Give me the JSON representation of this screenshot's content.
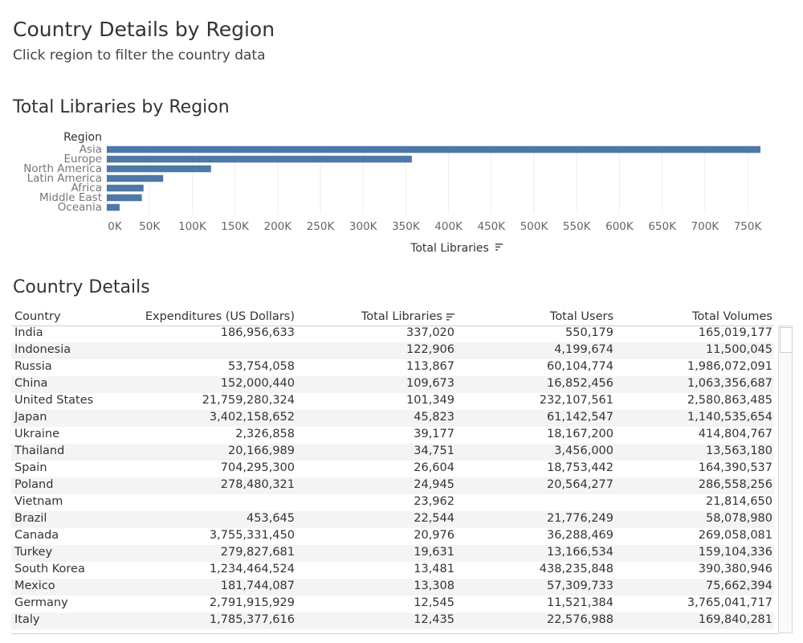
{
  "header": {
    "title": "Country Details by Region",
    "subtitle": "Click region to filter the country data"
  },
  "chart_section": {
    "title": "Total Libraries by Region"
  },
  "table_section": {
    "title": "Country Details"
  },
  "chart_data": {
    "type": "bar",
    "orientation": "horizontal",
    "title": "Total Libraries by Region",
    "dimension_label": "Region",
    "xlabel": "Total Libraries",
    "categories": [
      "Asia",
      "Europe",
      "North America",
      "Latin America",
      "Africa",
      "Middle East",
      "Oceania"
    ],
    "values": [
      765000,
      357000,
      122000,
      66000,
      43000,
      41000,
      15000
    ],
    "xlim": [
      0,
      765000
    ],
    "xticks": [
      0,
      50000,
      100000,
      150000,
      200000,
      250000,
      300000,
      350000,
      400000,
      450000,
      500000,
      550000,
      600000,
      650000,
      700000,
      750000
    ],
    "xtick_labels": [
      "0K",
      "50K",
      "100K",
      "150K",
      "200K",
      "250K",
      "300K",
      "350K",
      "400K",
      "450K",
      "500K",
      "550K",
      "600K",
      "650K",
      "700K",
      "750K"
    ],
    "sorted_by": "Total Libraries",
    "grid": true,
    "bar_color": "#4e79a7"
  },
  "table": {
    "columns": [
      "Country",
      "Expenditures  (US Dollars)",
      "Total Libraries",
      "Total Users",
      "Total Volumes"
    ],
    "rows": [
      [
        "India",
        "186,956,633",
        "337,020",
        "550,179",
        "165,019,177"
      ],
      [
        "Indonesia",
        "",
        "122,906",
        "4,199,674",
        "11,500,045"
      ],
      [
        "Russia",
        "53,754,058",
        "113,867",
        "60,104,774",
        "1,986,072,091"
      ],
      [
        "China",
        "152,000,440",
        "109,673",
        "16,852,456",
        "1,063,356,687"
      ],
      [
        "United States",
        "21,759,280,324",
        "101,349",
        "232,107,561",
        "2,580,863,485"
      ],
      [
        "Japan",
        "3,402,158,652",
        "45,823",
        "61,142,547",
        "1,140,535,654"
      ],
      [
        "Ukraine",
        "2,326,858",
        "39,177",
        "18,167,200",
        "414,804,767"
      ],
      [
        "Thailand",
        "20,166,989",
        "34,751",
        "3,456,000",
        "13,563,180"
      ],
      [
        "Spain",
        "704,295,300",
        "26,604",
        "18,753,442",
        "164,390,537"
      ],
      [
        "Poland",
        "278,480,321",
        "24,945",
        "20,564,277",
        "286,558,256"
      ],
      [
        "Vietnam",
        "",
        "23,962",
        "",
        "21,814,650"
      ],
      [
        "Brazil",
        "453,645",
        "22,544",
        "21,776,249",
        "58,078,980"
      ],
      [
        "Canada",
        "3,755,331,450",
        "20,976",
        "36,288,469",
        "269,058,081"
      ],
      [
        "Turkey",
        "279,827,681",
        "19,631",
        "13,166,534",
        "159,104,336"
      ],
      [
        "South Korea",
        "1,234,464,524",
        "13,481",
        "438,235,848",
        "390,380,946"
      ],
      [
        "Mexico",
        "181,744,087",
        "13,308",
        "57,309,733",
        "75,662,394"
      ],
      [
        "Germany",
        "2,791,915,929",
        "12,545",
        "11,521,384",
        "3,765,041,717"
      ],
      [
        "Italy",
        "1,785,377,616",
        "12,435",
        "22,576,988",
        "169,840,281"
      ]
    ]
  }
}
